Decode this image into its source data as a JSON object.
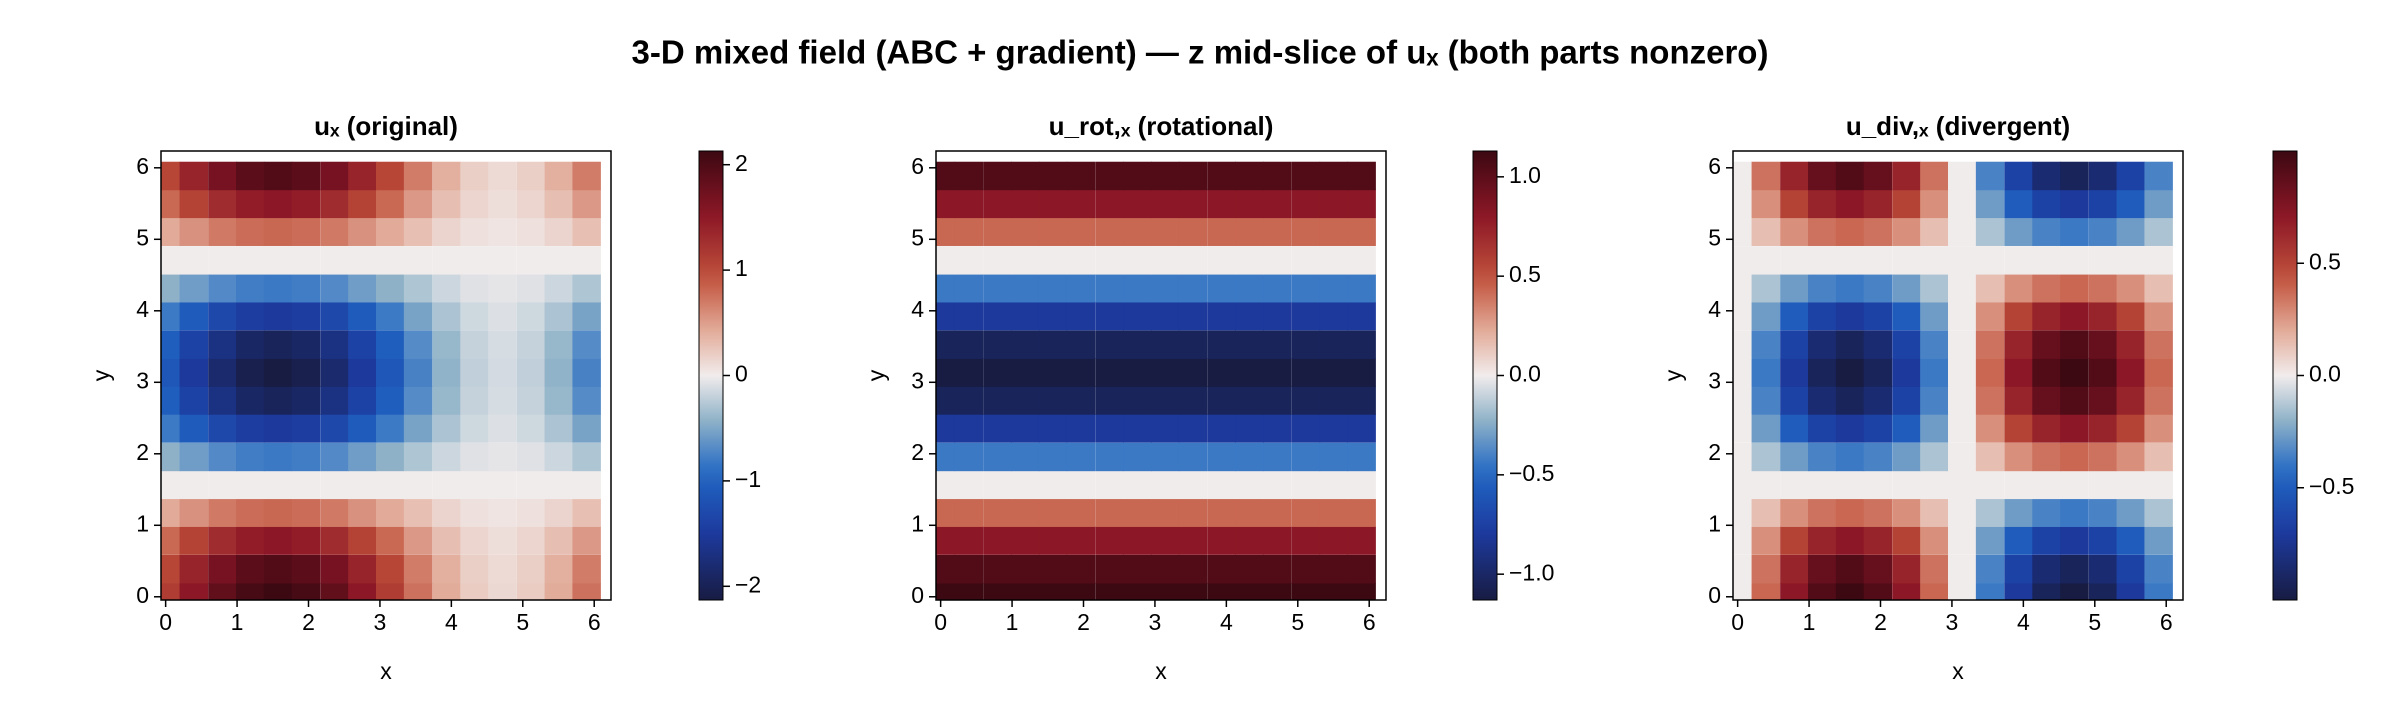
{
  "title": "3-D mixed field (ABC + gradient) — z mid-slice of uₓ  (both parts nonzero)",
  "chart_data": [
    {
      "type": "heatmap",
      "title": "uₓ (original)",
      "x_label": "x",
      "y_label": "y",
      "colormap": "balance",
      "x": [
        0,
        0.39,
        0.79,
        1.18,
        1.57,
        1.96,
        2.36,
        2.75,
        3.14,
        3.53,
        3.93,
        4.32,
        4.71,
        5.11,
        5.5,
        5.89
      ],
      "y": [
        0,
        0.39,
        0.79,
        1.18,
        1.57,
        1.96,
        2.36,
        2.75,
        3.14,
        3.53,
        3.93,
        4.32,
        4.71,
        5.11,
        5.5,
        5.89
      ],
      "z": [
        [
          1.13,
          1.51,
          1.84,
          2.05,
          2.13,
          2.05,
          1.84,
          1.51,
          1.13,
          0.75,
          0.42,
          0.21,
          0.13,
          0.21,
          0.42,
          0.75
        ],
        [
          1.04,
          1.39,
          1.69,
          1.89,
          1.96,
          1.89,
          1.69,
          1.39,
          1.04,
          0.69,
          0.39,
          0.19,
          0.12,
          0.19,
          0.39,
          0.69
        ],
        [
          0.8,
          1.07,
          1.3,
          1.45,
          1.51,
          1.45,
          1.3,
          1.07,
          0.8,
          0.53,
          0.3,
          0.15,
          0.09,
          0.15,
          0.3,
          0.53
        ],
        [
          0.43,
          0.57,
          0.7,
          0.78,
          0.81,
          0.78,
          0.7,
          0.57,
          0.43,
          0.29,
          0.16,
          0.08,
          0.05,
          0.08,
          0.16,
          0.29
        ],
        [
          0,
          0,
          0,
          0,
          0,
          0,
          0,
          0,
          0,
          0,
          0,
          0,
          0,
          0,
          0,
          0
        ],
        [
          -0.43,
          -0.57,
          -0.7,
          -0.78,
          -0.81,
          -0.78,
          -0.7,
          -0.57,
          -0.43,
          -0.29,
          -0.16,
          -0.08,
          -0.05,
          -0.08,
          -0.16,
          -0.29
        ],
        [
          -0.8,
          -1.07,
          -1.3,
          -1.45,
          -1.51,
          -1.45,
          -1.3,
          -1.07,
          -0.8,
          -0.53,
          -0.3,
          -0.15,
          -0.09,
          -0.15,
          -0.3,
          -0.53
        ],
        [
          -1.04,
          -1.39,
          -1.69,
          -1.89,
          -1.96,
          -1.89,
          -1.69,
          -1.39,
          -1.04,
          -0.69,
          -0.39,
          -0.19,
          -0.12,
          -0.19,
          -0.39,
          -0.69
        ],
        [
          -1.13,
          -1.51,
          -1.84,
          -2.05,
          -2.13,
          -2.05,
          -1.84,
          -1.51,
          -1.13,
          -0.75,
          -0.42,
          -0.21,
          -0.13,
          -0.21,
          -0.42,
          -0.75
        ],
        [
          -1.04,
          -1.39,
          -1.69,
          -1.89,
          -1.96,
          -1.89,
          -1.69,
          -1.39,
          -1.04,
          -0.69,
          -0.39,
          -0.19,
          -0.12,
          -0.19,
          -0.39,
          -0.69
        ],
        [
          -0.8,
          -1.07,
          -1.3,
          -1.45,
          -1.51,
          -1.45,
          -1.3,
          -1.07,
          -0.8,
          -0.53,
          -0.3,
          -0.15,
          -0.09,
          -0.15,
          -0.3,
          -0.53
        ],
        [
          -0.43,
          -0.57,
          -0.7,
          -0.78,
          -0.81,
          -0.78,
          -0.7,
          -0.57,
          -0.43,
          -0.29,
          -0.16,
          -0.08,
          -0.05,
          -0.08,
          -0.16,
          -0.29
        ],
        [
          0,
          0,
          0,
          0,
          0,
          0,
          0,
          0,
          0,
          0,
          0,
          0,
          0,
          0,
          0,
          0
        ],
        [
          0.43,
          0.57,
          0.7,
          0.78,
          0.81,
          0.78,
          0.7,
          0.57,
          0.43,
          0.29,
          0.16,
          0.08,
          0.05,
          0.08,
          0.16,
          0.29
        ],
        [
          0.8,
          1.07,
          1.3,
          1.45,
          1.51,
          1.45,
          1.3,
          1.07,
          0.8,
          0.53,
          0.3,
          0.15,
          0.09,
          0.15,
          0.3,
          0.53
        ],
        [
          1.04,
          1.39,
          1.69,
          1.89,
          1.96,
          1.89,
          1.69,
          1.39,
          1.04,
          0.69,
          0.39,
          0.19,
          0.12,
          0.19,
          0.39,
          0.69
        ]
      ],
      "xlim": [
        -0.065,
        6.235
      ],
      "ylim": [
        -0.045,
        6.235
      ],
      "xticks": [
        0,
        1,
        2,
        3,
        4,
        5,
        6
      ],
      "yticks": [
        0,
        1,
        2,
        3,
        4,
        5,
        6
      ],
      "clim": [
        -2.13,
        2.13
      ],
      "cticks": [
        {
          "value": -2,
          "label": "−2"
        },
        {
          "value": -1,
          "label": "−1"
        },
        0,
        1,
        2
      ]
    },
    {
      "type": "heatmap",
      "title": "u_rot,ₓ (rotational)",
      "x_label": "x",
      "y_label": "y",
      "colormap": "balance",
      "x": [
        0,
        0.39,
        0.79,
        1.18,
        1.57,
        1.96,
        2.36,
        2.75,
        3.14,
        3.53,
        3.93,
        4.32,
        4.71,
        5.11,
        5.5,
        5.89
      ],
      "y": [
        0,
        0.39,
        0.79,
        1.18,
        1.57,
        1.96,
        2.36,
        2.75,
        3.14,
        3.53,
        3.93,
        4.32,
        4.71,
        5.11,
        5.5,
        5.89
      ],
      "z": [
        [
          1.13,
          1.13,
          1.13,
          1.13,
          1.13,
          1.13,
          1.13,
          1.13,
          1.13,
          1.13,
          1.13,
          1.13,
          1.13,
          1.13,
          1.13,
          1.13
        ],
        [
          1.04,
          1.04,
          1.04,
          1.04,
          1.04,
          1.04,
          1.04,
          1.04,
          1.04,
          1.04,
          1.04,
          1.04,
          1.04,
          1.04,
          1.04,
          1.04
        ],
        [
          0.8,
          0.8,
          0.8,
          0.8,
          0.8,
          0.8,
          0.8,
          0.8,
          0.8,
          0.8,
          0.8,
          0.8,
          0.8,
          0.8,
          0.8,
          0.8
        ],
        [
          0.43,
          0.43,
          0.43,
          0.43,
          0.43,
          0.43,
          0.43,
          0.43,
          0.43,
          0.43,
          0.43,
          0.43,
          0.43,
          0.43,
          0.43,
          0.43
        ],
        [
          0,
          0,
          0,
          0,
          0,
          0,
          0,
          0,
          0,
          0,
          0,
          0,
          0,
          0,
          0,
          0
        ],
        [
          -0.43,
          -0.43,
          -0.43,
          -0.43,
          -0.43,
          -0.43,
          -0.43,
          -0.43,
          -0.43,
          -0.43,
          -0.43,
          -0.43,
          -0.43,
          -0.43,
          -0.43,
          -0.43
        ],
        [
          -0.8,
          -0.8,
          -0.8,
          -0.8,
          -0.8,
          -0.8,
          -0.8,
          -0.8,
          -0.8,
          -0.8,
          -0.8,
          -0.8,
          -0.8,
          -0.8,
          -0.8,
          -0.8
        ],
        [
          -1.04,
          -1.04,
          -1.04,
          -1.04,
          -1.04,
          -1.04,
          -1.04,
          -1.04,
          -1.04,
          -1.04,
          -1.04,
          -1.04,
          -1.04,
          -1.04,
          -1.04,
          -1.04
        ],
        [
          -1.13,
          -1.13,
          -1.13,
          -1.13,
          -1.13,
          -1.13,
          -1.13,
          -1.13,
          -1.13,
          -1.13,
          -1.13,
          -1.13,
          -1.13,
          -1.13,
          -1.13,
          -1.13
        ],
        [
          -1.04,
          -1.04,
          -1.04,
          -1.04,
          -1.04,
          -1.04,
          -1.04,
          -1.04,
          -1.04,
          -1.04,
          -1.04,
          -1.04,
          -1.04,
          -1.04,
          -1.04,
          -1.04
        ],
        [
          -0.8,
          -0.8,
          -0.8,
          -0.8,
          -0.8,
          -0.8,
          -0.8,
          -0.8,
          -0.8,
          -0.8,
          -0.8,
          -0.8,
          -0.8,
          -0.8,
          -0.8,
          -0.8
        ],
        [
          -0.43,
          -0.43,
          -0.43,
          -0.43,
          -0.43,
          -0.43,
          -0.43,
          -0.43,
          -0.43,
          -0.43,
          -0.43,
          -0.43,
          -0.43,
          -0.43,
          -0.43,
          -0.43
        ],
        [
          0,
          0,
          0,
          0,
          0,
          0,
          0,
          0,
          0,
          0,
          0,
          0,
          0,
          0,
          0,
          0
        ],
        [
          0.43,
          0.43,
          0.43,
          0.43,
          0.43,
          0.43,
          0.43,
          0.43,
          0.43,
          0.43,
          0.43,
          0.43,
          0.43,
          0.43,
          0.43,
          0.43
        ],
        [
          0.8,
          0.8,
          0.8,
          0.8,
          0.8,
          0.8,
          0.8,
          0.8,
          0.8,
          0.8,
          0.8,
          0.8,
          0.8,
          0.8,
          0.8,
          0.8
        ],
        [
          1.04,
          1.04,
          1.04,
          1.04,
          1.04,
          1.04,
          1.04,
          1.04,
          1.04,
          1.04,
          1.04,
          1.04,
          1.04,
          1.04,
          1.04,
          1.04
        ]
      ],
      "xlim": [
        -0.065,
        6.235
      ],
      "ylim": [
        -0.045,
        6.235
      ],
      "xticks": [
        0,
        1,
        2,
        3,
        4,
        5,
        6
      ],
      "yticks": [
        0,
        1,
        2,
        3,
        4,
        5,
        6
      ],
      "clim": [
        -1.13,
        1.13
      ],
      "cticks": [
        {
          "value": -1,
          "label": "−1.0"
        },
        {
          "value": -0.5,
          "label": "−0.5"
        },
        {
          "value": 0,
          "label": "0.0"
        },
        0.5,
        {
          "value": 1,
          "label": "1.0"
        }
      ]
    },
    {
      "type": "heatmap",
      "title": "u_div,ₓ (divergent)",
      "x_label": "x",
      "y_label": "y",
      "colormap": "balance",
      "x": [
        0,
        0.39,
        0.79,
        1.18,
        1.57,
        1.96,
        2.36,
        2.75,
        3.14,
        3.53,
        3.93,
        4.32,
        4.71,
        5.11,
        5.5,
        5.89
      ],
      "y": [
        0,
        0.39,
        0.79,
        1.18,
        1.57,
        1.96,
        2.36,
        2.75,
        3.14,
        3.53,
        3.93,
        4.32,
        4.71,
        5.11,
        5.5,
        5.89
      ],
      "z": [
        [
          0,
          0.38,
          0.71,
          0.92,
          1,
          0.92,
          0.71,
          0.38,
          0,
          -0.38,
          -0.71,
          -0.92,
          -1,
          -0.92,
          -0.71,
          -0.38
        ],
        [
          0,
          0.35,
          0.65,
          0.85,
          0.92,
          0.85,
          0.65,
          0.35,
          0,
          -0.35,
          -0.65,
          -0.85,
          -0.92,
          -0.85,
          -0.65,
          -0.35
        ],
        [
          0,
          0.27,
          0.5,
          0.65,
          0.71,
          0.65,
          0.5,
          0.27,
          0,
          -0.27,
          -0.5,
          -0.65,
          -0.71,
          -0.65,
          -0.5,
          -0.27
        ],
        [
          0,
          0.14,
          0.27,
          0.35,
          0.38,
          0.35,
          0.27,
          0.14,
          0,
          -0.14,
          -0.27,
          -0.35,
          -0.38,
          -0.35,
          -0.27,
          -0.14
        ],
        [
          0,
          0,
          0,
          0,
          0,
          0,
          0,
          0,
          0,
          0,
          0,
          0,
          0,
          0,
          0,
          0
        ],
        [
          0,
          -0.14,
          -0.27,
          -0.35,
          -0.38,
          -0.35,
          -0.27,
          -0.14,
          0,
          0.14,
          0.27,
          0.35,
          0.38,
          0.35,
          0.27,
          0.14
        ],
        [
          0,
          -0.27,
          -0.5,
          -0.65,
          -0.71,
          -0.65,
          -0.5,
          -0.27,
          0,
          0.27,
          0.5,
          0.65,
          0.71,
          0.65,
          0.5,
          0.27
        ],
        [
          0,
          -0.35,
          -0.65,
          -0.85,
          -0.92,
          -0.85,
          -0.65,
          -0.35,
          0,
          0.35,
          0.65,
          0.85,
          0.92,
          0.85,
          0.65,
          0.35
        ],
        [
          0,
          -0.38,
          -0.71,
          -0.92,
          -1,
          -0.92,
          -0.71,
          -0.38,
          0,
          0.38,
          0.71,
          0.92,
          1,
          0.92,
          0.71,
          0.38
        ],
        [
          0,
          -0.35,
          -0.65,
          -0.85,
          -0.92,
          -0.85,
          -0.65,
          -0.35,
          0,
          0.35,
          0.65,
          0.85,
          0.92,
          0.85,
          0.65,
          0.35
        ],
        [
          0,
          -0.27,
          -0.5,
          -0.65,
          -0.71,
          -0.65,
          -0.5,
          -0.27,
          0,
          0.27,
          0.5,
          0.65,
          0.71,
          0.65,
          0.5,
          0.27
        ],
        [
          0,
          -0.14,
          -0.27,
          -0.35,
          -0.38,
          -0.35,
          -0.27,
          -0.14,
          0,
          0.14,
          0.27,
          0.35,
          0.38,
          0.35,
          0.27,
          0.14
        ],
        [
          0,
          0,
          0,
          0,
          0,
          0,
          0,
          0,
          0,
          0,
          0,
          0,
          0,
          0,
          0,
          0
        ],
        [
          0,
          0.14,
          0.27,
          0.35,
          0.38,
          0.35,
          0.27,
          0.14,
          0,
          -0.14,
          -0.27,
          -0.35,
          -0.38,
          -0.35,
          -0.27,
          -0.14
        ],
        [
          0,
          0.27,
          0.5,
          0.65,
          0.71,
          0.65,
          0.5,
          0.27,
          0,
          -0.27,
          -0.5,
          -0.65,
          -0.71,
          -0.65,
          -0.5,
          -0.27
        ],
        [
          0,
          0.35,
          0.65,
          0.85,
          0.92,
          0.85,
          0.65,
          0.35,
          0,
          -0.35,
          -0.65,
          -0.85,
          -0.92,
          -0.85,
          -0.65,
          -0.35
        ]
      ],
      "xlim": [
        -0.065,
        6.235
      ],
      "ylim": [
        -0.045,
        6.235
      ],
      "xticks": [
        0,
        1,
        2,
        3,
        4,
        5,
        6
      ],
      "yticks": [
        0,
        1,
        2,
        3,
        4,
        5,
        6
      ],
      "clim": [
        -1,
        1
      ],
      "cticks": [
        {
          "value": -0.5,
          "label": "−0.5"
        },
        {
          "value": 0,
          "label": "0.0"
        },
        0.5
      ]
    }
  ]
}
